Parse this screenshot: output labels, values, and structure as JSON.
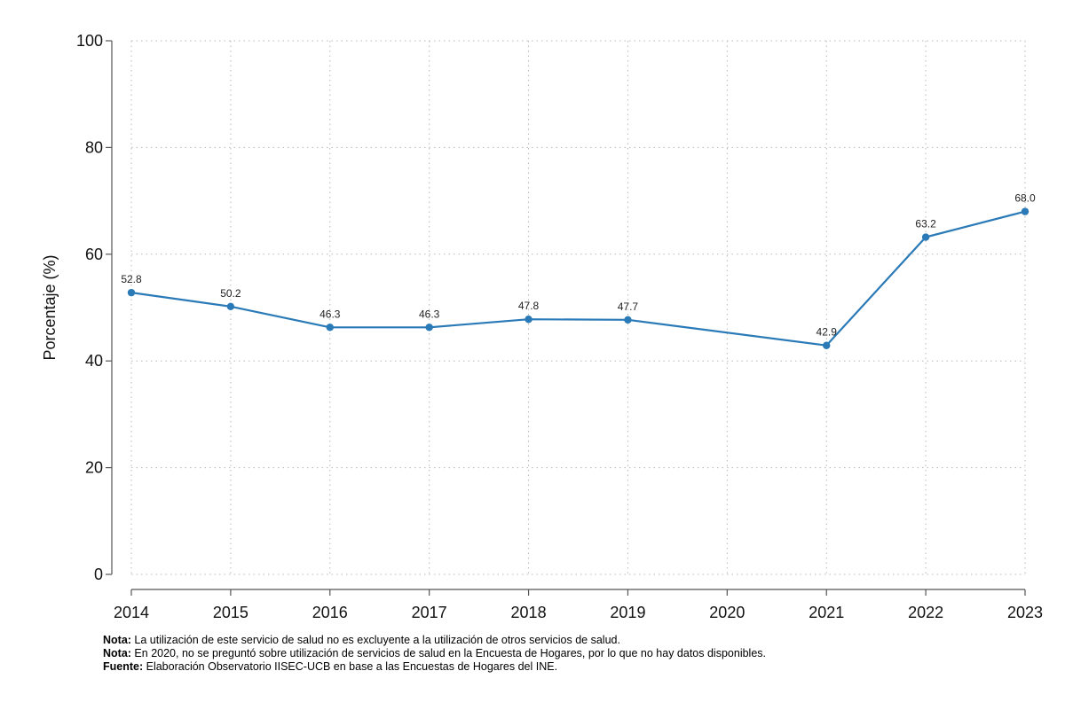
{
  "chart_data": {
    "type": "line",
    "x": [
      2014,
      2015,
      2016,
      2017,
      2018,
      2019,
      2021,
      2022,
      2023
    ],
    "x_ticks": [
      2014,
      2015,
      2016,
      2017,
      2018,
      2019,
      2020,
      2021,
      2022,
      2023
    ],
    "xlim": [
      2014,
      2023
    ],
    "series": [
      {
        "name": "",
        "values": [
          52.8,
          50.2,
          46.3,
          46.3,
          47.8,
          47.7,
          42.9,
          63.2,
          68.0
        ],
        "labels": [
          "52.8",
          "50.2",
          "46.3",
          "46.3",
          "47.8",
          "47.7",
          "42.9",
          "63.2",
          "68.0"
        ],
        "color": "#2a7ab8"
      }
    ],
    "title": "",
    "xlabel": "",
    "ylabel": "Porcentaje (%)",
    "ylim": [
      0,
      100
    ],
    "y_ticks": [
      0,
      20,
      40,
      60,
      80,
      100
    ],
    "grid": true,
    "grid_style": "dotted"
  },
  "notes": [
    {
      "prefix": "Nota:",
      "text": " La utilización de este servicio de salud no es excluyente a la utilización de otros servicios de salud."
    },
    {
      "prefix": "Nota:",
      "text": " En 2020, no se preguntó sobre utilización de servicios de salud en la Encuesta de Hogares, por lo que no hay datos disponibles."
    },
    {
      "prefix": "Fuente:",
      "text": " Elaboración Observatorio IISEC-UCB en base a las Encuestas de Hogares del INE."
    }
  ]
}
